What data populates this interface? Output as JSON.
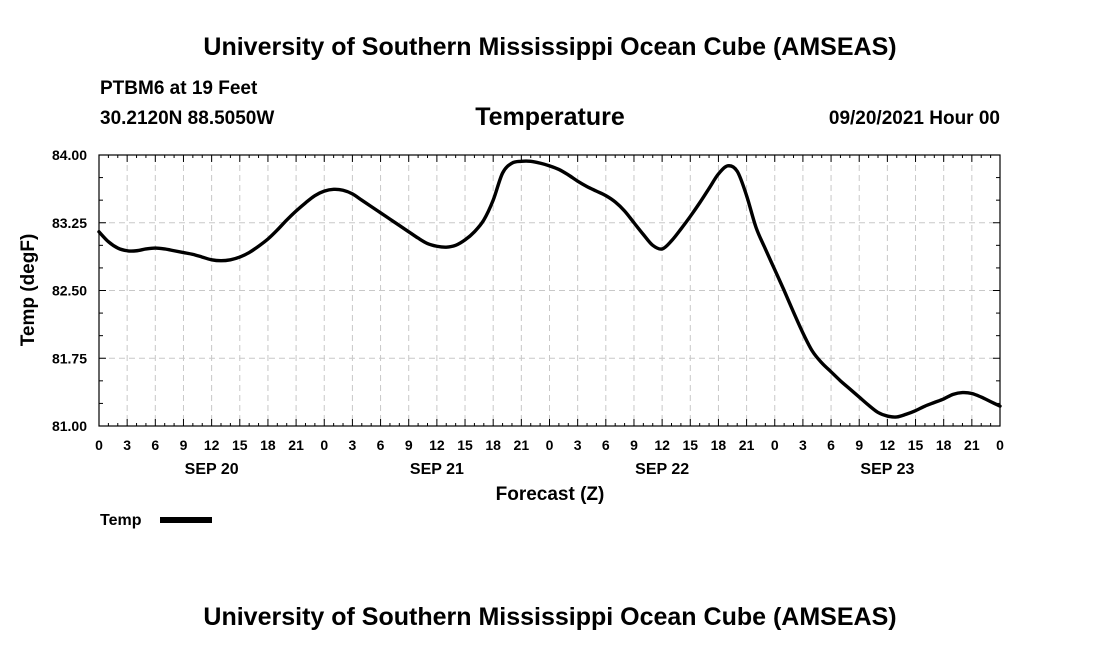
{
  "header": {
    "title": "University of Southern Mississippi Ocean Cube (AMSEAS)",
    "station": "PTBM6 at 19 Feet",
    "coords": "30.2120N  88.5050W",
    "forecast_time": "09/20/2021 Hour 00"
  },
  "footer": {
    "title": "University of Southern Mississippi Ocean Cube (AMSEAS)"
  },
  "chart_data": {
    "type": "line",
    "title": "Temperature",
    "xlabel": "Forecast (Z)",
    "ylabel": "Temp (degF)",
    "ylim": [
      81.0,
      84.0
    ],
    "xlim": [
      0,
      96
    ],
    "grid": true,
    "yticks": [
      "84.00",
      "83.25",
      "82.50",
      "81.75",
      "81.00"
    ],
    "ytick_values": [
      84.0,
      83.25,
      82.5,
      81.75,
      81.0
    ],
    "xtick_hours": [
      0,
      3,
      6,
      9,
      12,
      15,
      18,
      21,
      24,
      27,
      30,
      33,
      36,
      39,
      42,
      45,
      48,
      51,
      54,
      57,
      60,
      63,
      66,
      69,
      72,
      75,
      78,
      81,
      84,
      87,
      90,
      93,
      96
    ],
    "xtick_labels": [
      "0",
      "3",
      "6",
      "9",
      "12",
      "15",
      "18",
      "21",
      "0",
      "3",
      "6",
      "9",
      "12",
      "15",
      "18",
      "21",
      "0",
      "3",
      "6",
      "9",
      "12",
      "15",
      "18",
      "21",
      "0",
      "3",
      "6",
      "9",
      "12",
      "15",
      "18",
      "21",
      "0"
    ],
    "day_labels": [
      {
        "label": "SEP 20",
        "hour": 12
      },
      {
        "label": "SEP 21",
        "hour": 36
      },
      {
        "label": "SEP 22",
        "hour": 60
      },
      {
        "label": "SEP 23",
        "hour": 84
      }
    ],
    "legend": {
      "label": "Temp",
      "position": "bottom-left"
    },
    "series": [
      {
        "name": "Temp",
        "x": [
          0,
          1,
          2,
          3,
          4,
          5,
          6,
          7,
          8,
          9,
          10,
          11,
          12,
          13,
          14,
          15,
          16,
          17,
          18,
          19,
          20,
          21,
          22,
          23,
          24,
          25,
          26,
          27,
          28,
          29,
          30,
          31,
          32,
          33,
          34,
          35,
          36,
          37,
          38,
          39,
          40,
          41,
          42,
          43,
          44,
          45,
          46,
          47,
          48,
          49,
          50,
          51,
          52,
          53,
          54,
          55,
          56,
          57,
          58,
          59,
          60,
          61,
          62,
          63,
          64,
          65,
          66,
          67,
          68,
          69,
          70,
          71,
          72,
          73,
          74,
          75,
          76,
          77,
          78,
          79,
          80,
          81,
          82,
          83,
          84,
          85,
          86,
          87,
          88,
          89,
          90,
          91,
          92,
          93,
          94,
          95,
          96
        ],
        "values": [
          83.15,
          83.04,
          82.97,
          82.94,
          82.94,
          82.96,
          82.97,
          82.96,
          82.94,
          82.92,
          82.9,
          82.87,
          82.84,
          82.83,
          82.84,
          82.87,
          82.92,
          82.99,
          83.07,
          83.17,
          83.28,
          83.38,
          83.47,
          83.55,
          83.6,
          83.62,
          83.61,
          83.57,
          83.5,
          83.43,
          83.36,
          83.29,
          83.22,
          83.15,
          83.08,
          83.02,
          82.99,
          82.98,
          83.0,
          83.06,
          83.15,
          83.28,
          83.5,
          83.8,
          83.91,
          83.93,
          83.93,
          83.91,
          83.88,
          83.84,
          83.78,
          83.71,
          83.65,
          83.6,
          83.55,
          83.48,
          83.38,
          83.25,
          83.12,
          83.0,
          82.96,
          83.05,
          83.18,
          83.32,
          83.47,
          83.63,
          83.79,
          83.88,
          83.82,
          83.55,
          83.2,
          82.96,
          82.73,
          82.5,
          82.26,
          82.03,
          81.83,
          81.7,
          81.6,
          81.5,
          81.41,
          81.32,
          81.23,
          81.15,
          81.11,
          81.1,
          81.13,
          81.17,
          81.22,
          81.26,
          81.3,
          81.35,
          81.37,
          81.36,
          81.32,
          81.27,
          81.22
        ]
      }
    ]
  }
}
